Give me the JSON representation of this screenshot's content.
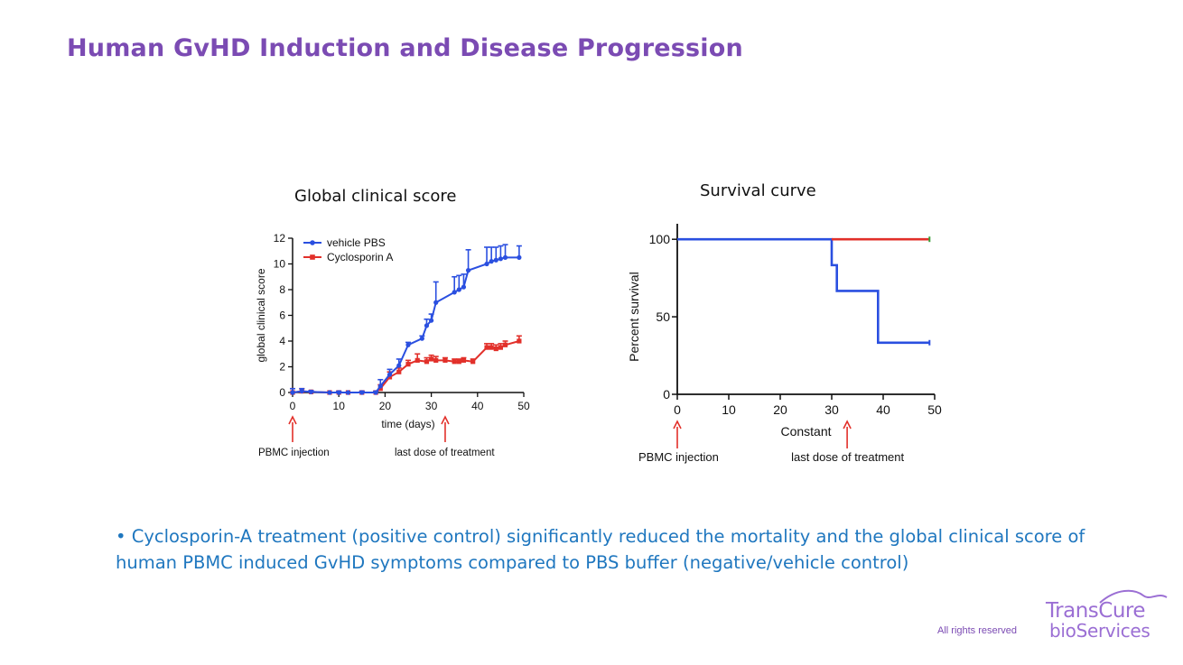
{
  "slide": {
    "title": "Human GvHD Induction and Disease Progression",
    "bullet": "• Cyclosporin-A treatment (positive control) significantly reduced the mortality and the global clinical score of human PBMC induced GvHD symptoms compared to PBS buffer (negative/vehicle control)",
    "footer": "All rights reserved",
    "logo": {
      "line1": "TransCure",
      "line2": "bioServices"
    },
    "colors": {
      "title": "#7b4bb3",
      "bullet": "#1f77bf",
      "vehicle": "#2a4fe0",
      "cyclosporin": "#e2302a",
      "arrow": "#e2302a"
    }
  },
  "chart_data": [
    {
      "type": "line",
      "title": "Global clinical score",
      "xlabel": "time (days)",
      "ylabel": "global clinical score",
      "xlim": [
        0,
        50
      ],
      "ylim": [
        0,
        12
      ],
      "xticks": [
        0,
        10,
        20,
        30,
        40,
        50
      ],
      "yticks": [
        0,
        2,
        4,
        6,
        8,
        10,
        12
      ],
      "legend_position": "top-left",
      "series": [
        {
          "name": "vehicle PBS",
          "x": [
            0,
            2,
            4,
            8,
            10,
            12,
            15,
            18,
            19,
            21,
            23,
            25,
            28,
            29,
            30,
            31,
            35,
            36,
            37,
            38,
            42,
            43,
            44,
            45,
            46,
            49
          ],
          "y": [
            0,
            0.1,
            0.05,
            0,
            0,
            0,
            0,
            0,
            0.5,
            1.4,
            2.1,
            3.7,
            4.2,
            5.2,
            5.6,
            7.0,
            7.8,
            8.0,
            8.2,
            9.5,
            10.0,
            10.2,
            10.3,
            10.4,
            10.5,
            10.5
          ],
          "err": [
            0.3,
            0.2,
            0.1,
            0,
            0.1,
            0,
            0.1,
            0.1,
            0.5,
            0.4,
            0.5,
            0.2,
            0.2,
            0.5,
            0.5,
            1.6,
            1.2,
            1.1,
            1.0,
            1.6,
            1.3,
            1.1,
            1.0,
            1.0,
            1.0,
            0.9
          ]
        },
        {
          "name": "Cyclosporin A",
          "x": [
            0,
            2,
            4,
            8,
            10,
            12,
            15,
            18,
            19,
            21,
            23,
            25,
            27,
            29,
            30,
            31,
            33,
            35,
            36,
            37,
            39,
            42,
            43,
            44,
            45,
            46,
            49
          ],
          "y": [
            0,
            0.1,
            0.05,
            0,
            0,
            0,
            0,
            0,
            0.3,
            1.2,
            1.6,
            2.2,
            2.5,
            2.4,
            2.6,
            2.5,
            2.5,
            2.4,
            2.4,
            2.5,
            2.4,
            3.5,
            3.5,
            3.4,
            3.5,
            3.7,
            4.0
          ],
          "err": [
            0.3,
            0.2,
            0.1,
            0,
            0.1,
            0,
            0.1,
            0.1,
            0.3,
            0.4,
            0.3,
            0.3,
            0.5,
            0.3,
            0.3,
            0.3,
            0.2,
            0.2,
            0.2,
            0.2,
            0.2,
            0.3,
            0.3,
            0.3,
            0.3,
            0.3,
            0.4
          ]
        }
      ],
      "annotations": [
        {
          "label": "PBMC injection",
          "x": 0
        },
        {
          "label": "last dose of treatment",
          "x": 33
        }
      ]
    },
    {
      "type": "line",
      "title": "Survival curve",
      "xlabel": "Constant",
      "ylabel": "Percent survival",
      "xlim": [
        0,
        50
      ],
      "ylim": [
        0,
        110
      ],
      "xticks": [
        0,
        10,
        20,
        30,
        40,
        50
      ],
      "yticks": [
        0,
        50,
        100
      ],
      "step": true,
      "series": [
        {
          "name": "vehicle PBS",
          "x": [
            0,
            30,
            30,
            31,
            31,
            39,
            39,
            49
          ],
          "y": [
            100,
            100,
            83.3,
            83.3,
            66.7,
            66.7,
            33.3,
            33.3
          ]
        },
        {
          "name": "Cyclosporin A",
          "x": [
            30,
            49
          ],
          "y": [
            100,
            100
          ]
        }
      ],
      "annotations": [
        {
          "label": "PBMC injection",
          "x": 0
        },
        {
          "label": "last dose of treatment",
          "x": 33
        }
      ]
    }
  ]
}
